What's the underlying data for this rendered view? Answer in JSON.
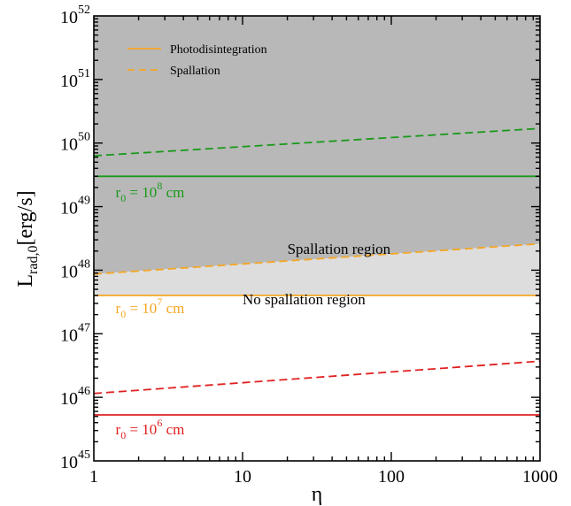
{
  "chart_data": {
    "type": "line",
    "xlabel": "η",
    "ylabel_main": "L",
    "ylabel_sub": "rad,0",
    "ylabel_unit": "[erg/s]",
    "xscale": "log",
    "yscale": "log",
    "xlim": [
      1,
      1000
    ],
    "ylim": [
      1e+45,
      1e+52
    ],
    "x_ticks": [
      {
        "value": 1,
        "label": "1"
      },
      {
        "value": 10,
        "label": "10"
      },
      {
        "value": 100,
        "label": "100"
      },
      {
        "value": 1000,
        "label": "1000"
      }
    ],
    "y_ticks": [
      {
        "value": 1e+45,
        "base": "10",
        "exp": "45"
      },
      {
        "value": 1e+46,
        "base": "10",
        "exp": "46"
      },
      {
        "value": 1e+47,
        "base": "10",
        "exp": "47"
      },
      {
        "value": 1e+48,
        "base": "10",
        "exp": "48"
      },
      {
        "value": 1e+49,
        "base": "10",
        "exp": "49"
      },
      {
        "value": 1e+50,
        "base": "10",
        "exp": "50"
      },
      {
        "value": 1e+51,
        "base": "10",
        "exp": "51"
      },
      {
        "value": 1e+52,
        "base": "10",
        "exp": "52"
      }
    ],
    "legend": {
      "placement": "top-left",
      "entries": [
        {
          "label": "Photodisintegration",
          "style": "solid",
          "color": "#f5a623"
        },
        {
          "label": "Spallation",
          "style": "dashed",
          "color": "#f5a623"
        }
      ]
    },
    "series": [
      {
        "style": "solid",
        "color": "#1a9a1a",
        "x": [
          1,
          1000
        ],
        "y": [
          3e+49,
          3e+49
        ]
      },
      {
        "style": "dashed",
        "color": "#1a9a1a",
        "x": [
          1,
          1000
        ],
        "y": [
          6.3e+49,
          1.7e+50
        ]
      },
      {
        "style": "solid",
        "color": "#f5a623",
        "x": [
          1,
          1000
        ],
        "y": [
          4e+47,
          4e+47
        ]
      },
      {
        "style": "dashed",
        "color": "#f5a623",
        "x": [
          1,
          1000
        ],
        "y": [
          8.7e+47,
          2.6e+48
        ]
      },
      {
        "style": "solid",
        "color": "#e02020",
        "x": [
          1,
          1000
        ],
        "y": [
          5.3e+45,
          5.3e+45
        ]
      },
      {
        "style": "dashed",
        "color": "#e02020",
        "x": [
          1,
          1000
        ],
        "y": [
          1.15e+46,
          3.7e+46
        ]
      }
    ],
    "regions": [
      {
        "name": "spallation-dark",
        "color": "#b8b8b8",
        "lower_series": 3
      },
      {
        "name": "spallation-light",
        "color": "#dddddd",
        "lower_series": 2,
        "upper_series": 3
      }
    ],
    "annotations": [
      {
        "key": "spallation_region",
        "text": "Spallation region",
        "x": 20,
        "y": 1.8e+48,
        "color": "#000000",
        "anchor": "start"
      },
      {
        "key": "no_spallation_region",
        "text": "No spallation region",
        "x": 10,
        "y": 2.9e+47,
        "color": "#000000",
        "anchor": "start"
      }
    ],
    "radius_labels": [
      {
        "prefix": "r",
        "sub": "0",
        "eq": " = 10",
        "exp": "8",
        "unit": " cm",
        "color": "#1a9a1a",
        "x": 1.4,
        "y": 1.4e+49
      },
      {
        "prefix": "r",
        "sub": "0",
        "eq": " = 10",
        "exp": "7",
        "unit": " cm",
        "color": "#f5a623",
        "x": 1.4,
        "y": 2.1e+47
      },
      {
        "prefix": "r",
        "sub": "0",
        "eq": " = 10",
        "exp": "6",
        "unit": " cm",
        "color": "#e02020",
        "x": 1.4,
        "y": 2.6e+45
      }
    ]
  }
}
